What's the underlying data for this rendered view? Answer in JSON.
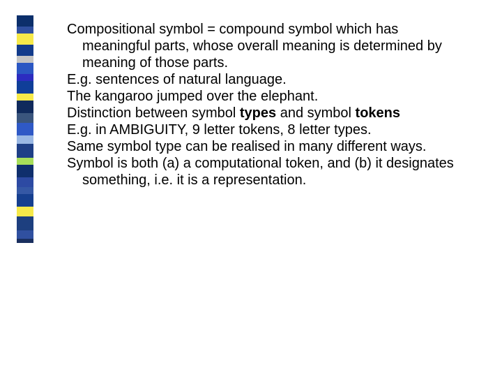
{
  "sidebar": {
    "blocks": [
      {
        "color": "#0c2f6b",
        "height": 16
      },
      {
        "color": "#2f4f9f",
        "height": 10
      },
      {
        "color": "#f6e94a",
        "height": 16
      },
      {
        "color": "#123b8b",
        "height": 16
      },
      {
        "color": "#c4c4c4",
        "height": 10
      },
      {
        "color": "#2b57c3",
        "height": 16
      },
      {
        "color": "#2c2cc0",
        "height": 10
      },
      {
        "color": "#0f3e99",
        "height": 18
      },
      {
        "color": "#f6e94a",
        "height": 10
      },
      {
        "color": "#102a5c",
        "height": 18
      },
      {
        "color": "#3a557d",
        "height": 14
      },
      {
        "color": "#2f59c6",
        "height": 18
      },
      {
        "color": "#9ab8e4",
        "height": 12
      },
      {
        "color": "#1e3f86",
        "height": 20
      },
      {
        "color": "#a7de5a",
        "height": 10
      },
      {
        "color": "#0f2f6d",
        "height": 18
      },
      {
        "color": "#2d4aa3",
        "height": 14
      },
      {
        "color": "#3558a5",
        "height": 10
      },
      {
        "color": "#163f8f",
        "height": 18
      },
      {
        "color": "#f6e94a",
        "height": 14
      },
      {
        "color": "#1d3f7f",
        "height": 20
      },
      {
        "color": "#3050a0",
        "height": 12
      },
      {
        "color": "#1a2f5f",
        "height": 6
      }
    ]
  },
  "content": {
    "p1": "Compositional symbol = compound symbol which has meaningful parts, whose overall meaning is determined by meaning of those parts.",
    "p2": "E.g. sentences of natural language.",
    "p3": "The kangaroo jumped over the elephant.",
    "p4_a": "Distinction between symbol ",
    "p4_b": "types",
    "p4_c": " and symbol ",
    "p4_d": "tokens",
    "p5": "E.g. in AMBIGUITY, 9 letter tokens, 8 letter types.",
    "p6": "Same symbol type can be realised in many different ways.",
    "p7": "Symbol is both (a) a computational token, and (b) it designates something, i.e. it is a representation."
  },
  "styles": {
    "text_color": "#000000",
    "background_color": "#ffffff",
    "font_family": "Arial",
    "font_size_pt": 20
  }
}
